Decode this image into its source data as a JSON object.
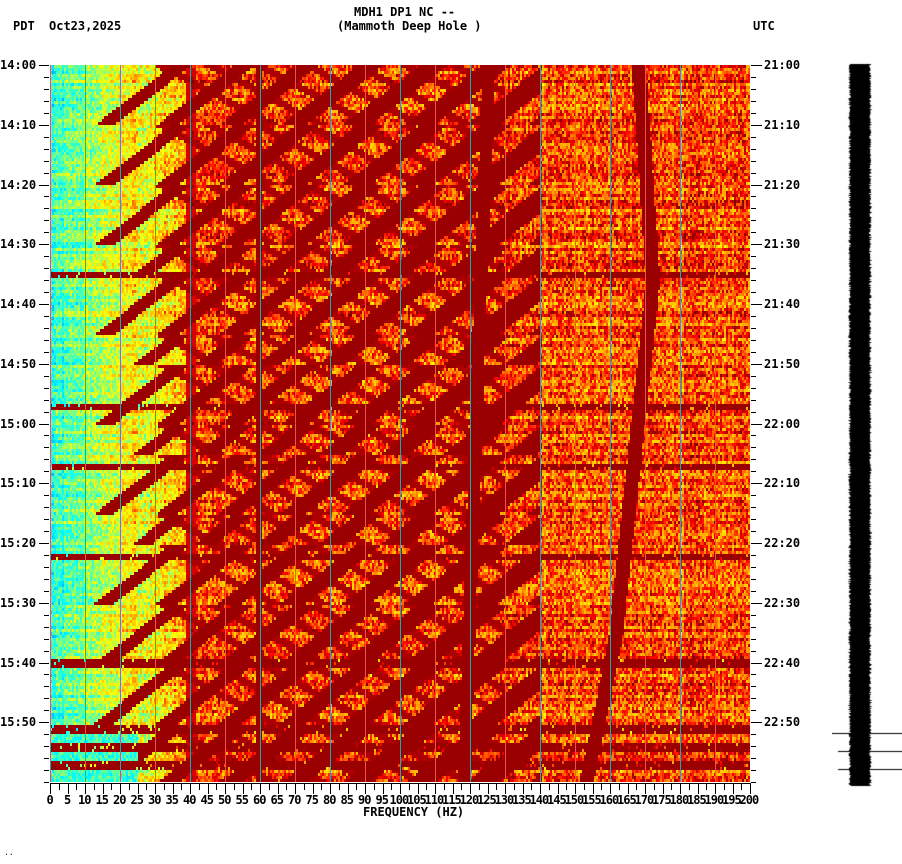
{
  "header": {
    "station": "MDH1 DP1 NC --",
    "location": "(Mammoth Deep Hole )",
    "left_tz": "PDT",
    "date": "Oct23,2025",
    "right_tz": "UTC"
  },
  "footer_mark": "..",
  "chart_data": {
    "type": "heatmap",
    "title": "MDH1 DP1 NC -- (Mammoth Deep Hole )",
    "xlabel": "FREQUENCY (HZ)",
    "ylabel_left": "PDT",
    "ylabel_right": "UTC",
    "xlim": [
      0,
      200
    ],
    "x_ticks": [
      0,
      5,
      10,
      15,
      20,
      25,
      30,
      35,
      40,
      45,
      50,
      55,
      60,
      65,
      70,
      75,
      80,
      85,
      90,
      95,
      100,
      105,
      110,
      115,
      120,
      125,
      130,
      135,
      140,
      145,
      150,
      155,
      160,
      165,
      170,
      175,
      180,
      185,
      190,
      195,
      200
    ],
    "y_ticks_left": [
      "14:00",
      "14:10",
      "14:20",
      "14:30",
      "14:40",
      "14:50",
      "15:00",
      "15:10",
      "15:20",
      "15:30",
      "15:40",
      "15:50"
    ],
    "y_ticks_right": [
      "21:00",
      "21:10",
      "21:20",
      "21:30",
      "21:40",
      "21:50",
      "22:00",
      "22:10",
      "22:20",
      "22:30",
      "22:40",
      "22:50"
    ],
    "time_range_minutes": 120,
    "colormap": [
      "#0000ff",
      "#00a0ff",
      "#00ffff",
      "#80ff80",
      "#ffff00",
      "#ffa000",
      "#ff0000",
      "#800000"
    ],
    "grid_vertical_every_hz": 15,
    "features": {
      "low_freq_quiet_band_hz": [
        0,
        25
      ],
      "sweeping_harmonics_period_min": 10,
      "sweep_events_start_minutes": [
        0,
        35,
        50,
        65,
        80,
        100
      ],
      "steady_line_hz": [
        59.5
      ],
      "drifting_line": {
        "start_hz": 168,
        "mid_hz": 172,
        "end_hz": 157,
        "note": "slowly drifting tone 155-175 Hz"
      },
      "second_drifting_line": {
        "start_hz": 125,
        "end_hz": 118
      },
      "strong_horizontal_bands_minutes": [
        35,
        57,
        67,
        82,
        100,
        111,
        114,
        117
      ]
    },
    "side_trace": {
      "type": "seismogram",
      "color": "#000000",
      "marker_lines_minutes": [
        112,
        115,
        118
      ]
    }
  }
}
